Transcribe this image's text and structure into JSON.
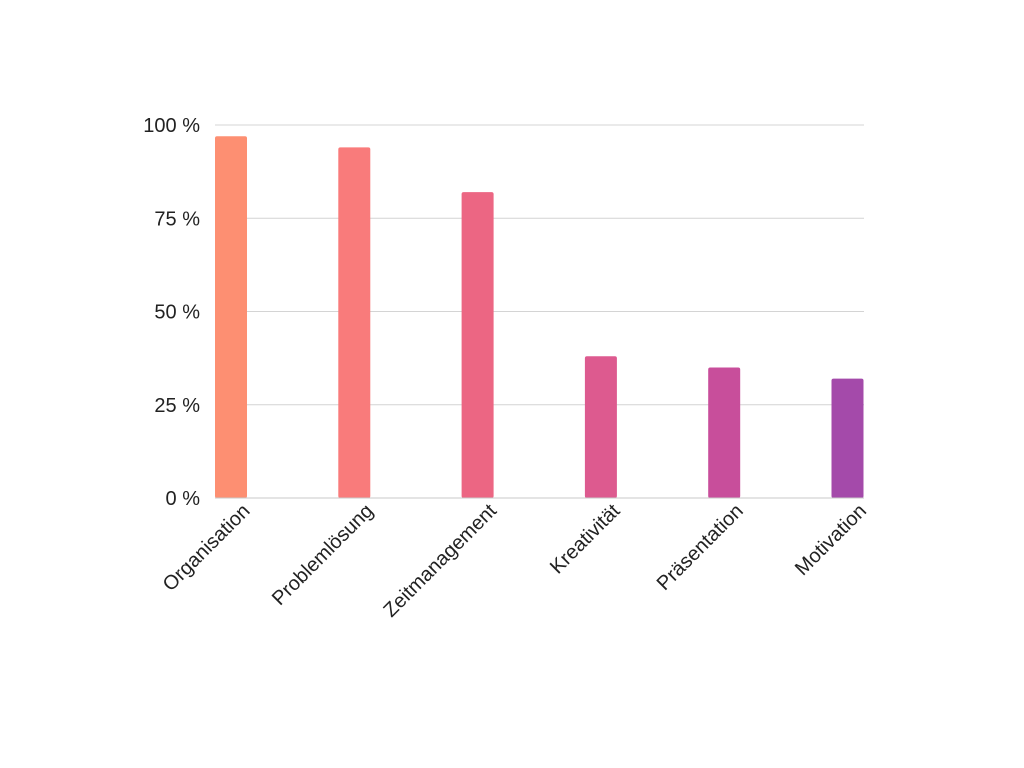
{
  "chart_data": {
    "type": "bar",
    "title": "",
    "xlabel": "",
    "ylabel": "",
    "categories": [
      "Organisation",
      "Problemlösung",
      "Zeitmanagement",
      "Kreativität",
      "Präsentation",
      "Motivation"
    ],
    "values": [
      97,
      94,
      82,
      38,
      35,
      32
    ],
    "ylim": [
      0,
      100
    ],
    "yticks": [
      0,
      25,
      50,
      75,
      100
    ],
    "ytick_suffix": " %",
    "grid": true,
    "legend": "none",
    "bar_colors": [
      "#fd8f72",
      "#f97b7b",
      "#ec6683",
      "#dd5a8f",
      "#c84e9b",
      "#a44aaa"
    ]
  }
}
